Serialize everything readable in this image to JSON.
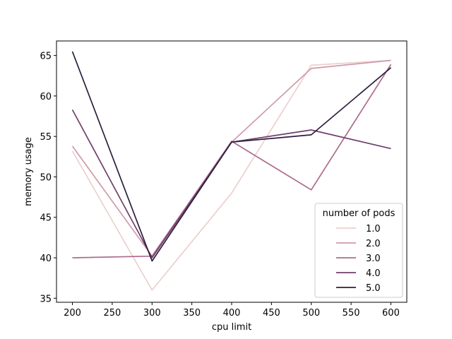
{
  "chart_data": {
    "type": "line",
    "title": "",
    "xlabel": "cpu limit",
    "ylabel": "memory usage",
    "x": [
      200,
      300,
      400,
      500,
      600
    ],
    "xlim": [
      180,
      620
    ],
    "ylim": [
      34.5,
      66.8
    ],
    "xticks": [
      200,
      250,
      300,
      350,
      400,
      450,
      500,
      550,
      600
    ],
    "yticks": [
      35,
      40,
      45,
      50,
      55,
      60,
      65
    ],
    "grid": false,
    "legend": {
      "title": "number of pods",
      "placement": "lower right"
    },
    "series": [
      {
        "name": "1.0",
        "color": "#ecd0cd",
        "values": [
          53.2,
          36.0,
          48.0,
          63.8,
          64.4
        ]
      },
      {
        "name": "2.0",
        "color": "#d09aab",
        "values": [
          53.8,
          40.2,
          54.3,
          63.4,
          64.4
        ]
      },
      {
        "name": "3.0",
        "color": "#ad6b8e",
        "values": [
          40.0,
          40.2,
          54.4,
          48.4,
          63.9
        ]
      },
      {
        "name": "4.0",
        "color": "#723d6c",
        "values": [
          58.3,
          40.0,
          54.3,
          55.8,
          53.5
        ]
      },
      {
        "name": "5.0",
        "color": "#2d1e3e",
        "values": [
          65.5,
          39.6,
          54.3,
          55.2,
          63.5
        ]
      }
    ]
  }
}
